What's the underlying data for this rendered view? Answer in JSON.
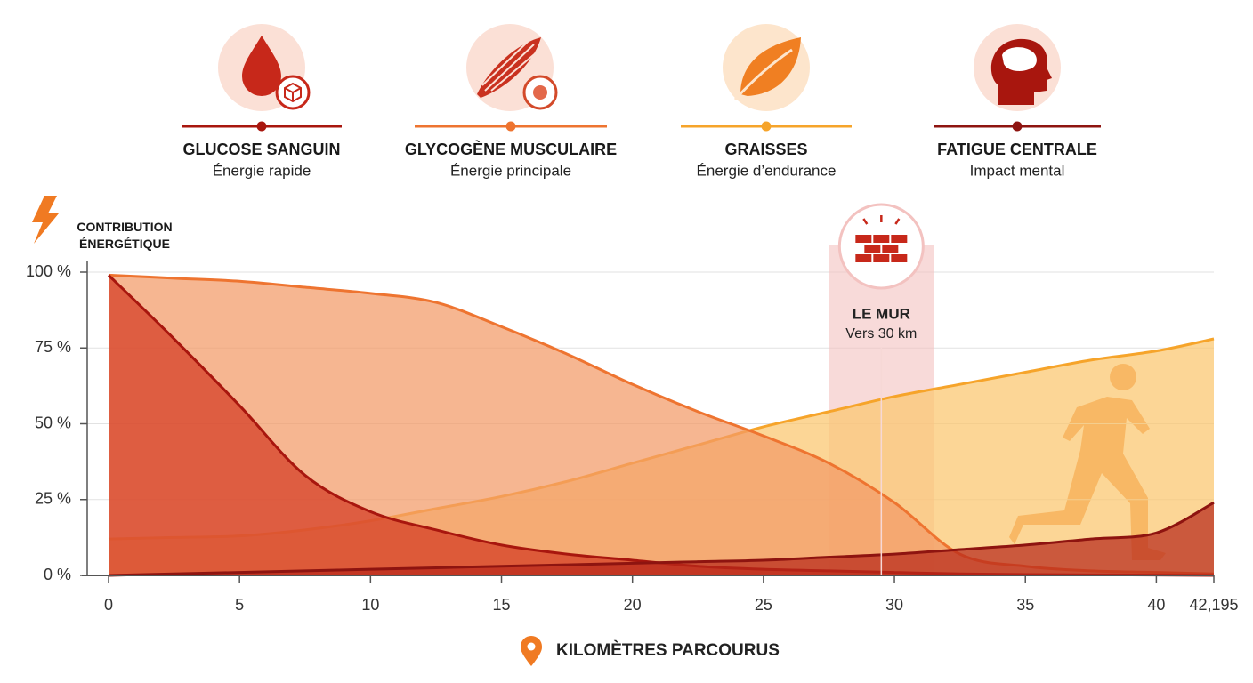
{
  "chart_data": {
    "type": "area",
    "y_label": "CONTRIBUTION ÉNERGÉTIQUE",
    "x_label": "KILOMÈTRES PARCOURUS",
    "x": [
      0,
      2.5,
      5,
      7.5,
      10,
      12.5,
      15,
      17.5,
      20,
      22.5,
      25,
      27.5,
      30,
      32.5,
      35,
      37.5,
      40,
      42.195
    ],
    "series": [
      {
        "name": "GRAISSES",
        "description": "Énergie d’endurance",
        "color": "#f6a42a",
        "fill": "#fbc66e",
        "values": [
          12,
          12.5,
          13,
          15,
          18,
          22,
          26,
          31,
          37,
          43,
          49,
          54,
          59,
          63,
          67,
          71,
          74,
          78
        ]
      },
      {
        "name": "GLYCOGÈNE MUSCULAIRE",
        "description": "Énergie principale",
        "color": "#ee7430",
        "fill": "#f39a66",
        "values": [
          99,
          98,
          97,
          95,
          93,
          90,
          82,
          73,
          63,
          54,
          46,
          37,
          24,
          7,
          3,
          1.5,
          1,
          0.5
        ]
      },
      {
        "name": "GLUCOSE SANGUIN",
        "description": "Énergie rapide",
        "color": "#a8160e",
        "fill": "#d43a22",
        "values": [
          99,
          78,
          56,
          33,
          21,
          15,
          10,
          7,
          5,
          3,
          2,
          1.5,
          1,
          0.5,
          0.3,
          0.2,
          0.1,
          0
        ]
      },
      {
        "name": "FATIGUE CENTRALE",
        "description": "Impact mental",
        "color": "#8e1410",
        "fill": "#b8281a",
        "values": [
          0,
          0.5,
          1,
          1.5,
          2,
          2.5,
          3,
          3.5,
          4,
          4.5,
          5,
          6,
          7,
          8.5,
          10,
          12,
          14,
          24
        ]
      }
    ],
    "legend_order": [
      2,
      1,
      0,
      3
    ],
    "annotation": {
      "title": "LE MUR",
      "subtitle": "Vers 30 km",
      "range": [
        27.5,
        31.5
      ],
      "at": 29.5
    },
    "xlim": [
      0,
      42.195
    ],
    "xticks": [
      0,
      5,
      10,
      15,
      20,
      25,
      30,
      35,
      40,
      {
        "value": 42.195,
        "label": "42,195"
      }
    ],
    "ylim": [
      0,
      100
    ],
    "yticks": [
      {
        "value": 0,
        "label": "0 %"
      },
      {
        "value": 25,
        "label": "25 %"
      },
      {
        "value": 50,
        "label": "50 %"
      },
      {
        "value": 75,
        "label": "75 %"
      },
      {
        "value": 100,
        "label": "100 %"
      }
    ],
    "grid": true
  }
}
